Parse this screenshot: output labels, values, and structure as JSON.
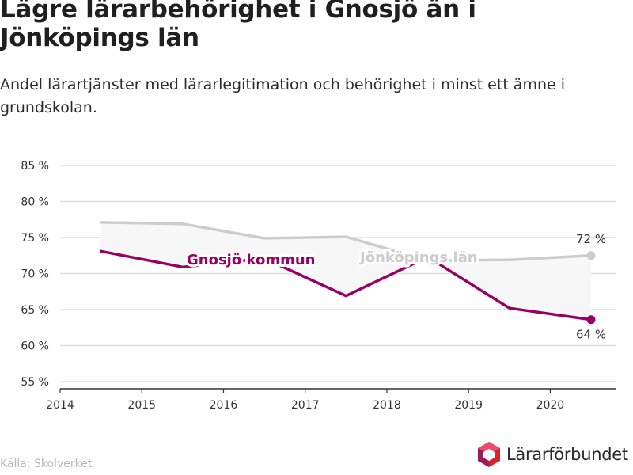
{
  "title": "Lägre lärarbehörighet i Gnosjö än i Jönköpings län",
  "subtitle": "Andel lärartjänster med lärarlegitimation och behörighet i minst ett ämne i grundskolan.",
  "source": "Källa: Skolverket",
  "brand": {
    "name": "Lärarförbundet",
    "logo_icon": "hexagon-logo-icon"
  },
  "colors": {
    "gnosjo": "#990066",
    "jonkoping": "#cccccc",
    "band": "#f7f7f7",
    "grid": "#dedede"
  },
  "chart_data": {
    "type": "line",
    "x": [
      2014.5,
      2015.5,
      2016.5,
      2017.5,
      2018.5,
      2019.5,
      2020.5
    ],
    "xlim": [
      2014,
      2020.8
    ],
    "xticks": [
      "2014",
      "2015",
      "2016",
      "2017",
      "2018",
      "2019",
      "2020"
    ],
    "ylim": [
      55,
      85
    ],
    "yticks": [
      "55 %",
      "60 %",
      "65 %",
      "70 %",
      "75 %",
      "80 %",
      "85 %"
    ],
    "grid": true,
    "series": [
      {
        "name": "Jönköpings län",
        "values": [
          77.1,
          76.9,
          74.9,
          75.1,
          71.8,
          71.9,
          72.5
        ],
        "end_label": "72 %"
      },
      {
        "name": "Gnosjö kommun",
        "values": [
          73.1,
          70.9,
          72.1,
          66.9,
          72.3,
          65.2,
          63.6
        ],
        "end_label": "64 %"
      }
    ]
  }
}
